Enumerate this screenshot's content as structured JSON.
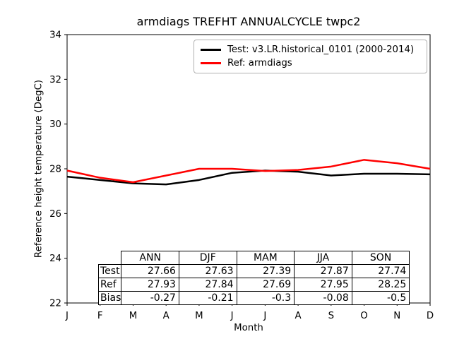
{
  "title": "armdiags TREFHT ANNUALCYCLE twpc2",
  "axes": {
    "xlabel": "Month",
    "ylabel": "Reference height temperature (DegC)"
  },
  "legend": {
    "items": [
      {
        "label": "Test: v3.LR.historical_0101 (2000-2014)",
        "color": "#000000"
      },
      {
        "label": "Ref: armdiags",
        "color": "#ff0000"
      }
    ]
  },
  "chart_data": {
    "type": "line",
    "title": "armdiags TREFHT ANNUALCYCLE twpc2",
    "xlabel": "Month",
    "ylabel": "Reference height temperature (DegC)",
    "categories": [
      "J",
      "F",
      "M",
      "A",
      "M",
      "J",
      "J",
      "A",
      "S",
      "O",
      "N",
      "D"
    ],
    "ylim": [
      22,
      34
    ],
    "yticks": [
      22,
      24,
      26,
      28,
      30,
      32,
      34
    ],
    "grid": false,
    "legend_position": "upper right",
    "series": [
      {
        "name": "Test: v3.LR.historical_0101 (2000-2014)",
        "color": "#000000",
        "values": [
          27.65,
          27.5,
          27.35,
          27.3,
          27.5,
          27.82,
          27.92,
          27.87,
          27.7,
          27.78,
          27.78,
          27.75
        ]
      },
      {
        "name": "Ref: armdiags",
        "color": "#ff0000",
        "values": [
          27.92,
          27.6,
          27.4,
          27.7,
          28.0,
          28.0,
          27.9,
          27.95,
          28.1,
          28.4,
          28.25,
          28.0
        ]
      }
    ]
  },
  "stats_table": {
    "col_headers": [
      "ANN",
      "DJF",
      "MAM",
      "JJA",
      "SON"
    ],
    "rows": [
      {
        "label": "Test",
        "values": [
          "27.66",
          "27.63",
          "27.39",
          "27.87",
          "27.74"
        ]
      },
      {
        "label": "Ref",
        "values": [
          "27.93",
          "27.84",
          "27.69",
          "27.95",
          "28.25"
        ]
      },
      {
        "label": "Bias",
        "values": [
          "-0.27",
          "-0.21",
          "-0.3",
          "-0.08",
          "-0.5"
        ]
      }
    ]
  }
}
